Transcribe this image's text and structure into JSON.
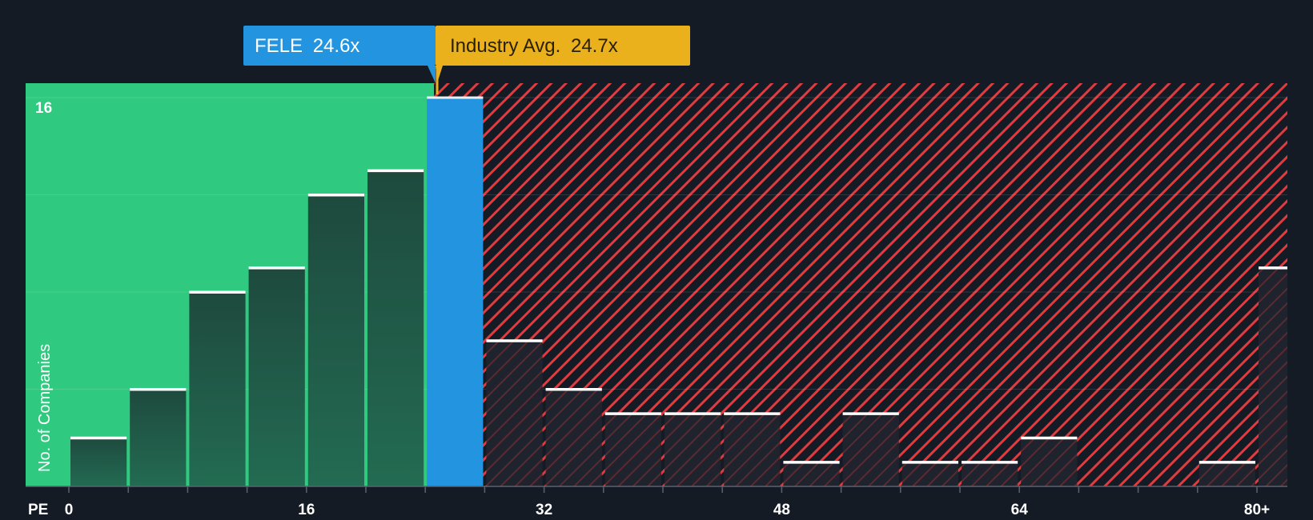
{
  "callouts": {
    "company": {
      "ticker": "FELE",
      "value": "24.6x",
      "pe": 24.6,
      "color": "#2394e0"
    },
    "industry": {
      "label": "Industry Avg.",
      "value": "24.7x",
      "pe": 24.7,
      "color": "#eab11c"
    }
  },
  "colors": {
    "background": "#151b24",
    "undervalued_zone": "#2fc97f",
    "overvalued_zone": "#e03b3f",
    "bar_fill": "#1e4a3e",
    "bar_fill_over": "#1a1e28",
    "bar_cap": "#ffffff",
    "company_bar": "#2394e0",
    "text": "#ffffff",
    "gridline": "#ffffff"
  },
  "chart_data": {
    "type": "bar",
    "title": "",
    "xlabel": "PE",
    "ylabel": "No. of Companies",
    "x_ticks": [
      "0",
      "16",
      "32",
      "48",
      "64",
      "80+"
    ],
    "x_tick_values": [
      0,
      16,
      32,
      48,
      64,
      80
    ],
    "y_ticks": [
      "16"
    ],
    "y_tick_values": [
      16
    ],
    "ylim": [
      0,
      16.6
    ],
    "xlim": [
      -2.9,
      82
    ],
    "bin_width": 4,
    "grid": true,
    "bins": [
      {
        "start": 0,
        "end": 4,
        "count": 2
      },
      {
        "start": 4,
        "end": 8,
        "count": 4
      },
      {
        "start": 8,
        "end": 12,
        "count": 8
      },
      {
        "start": 12,
        "end": 16,
        "count": 9
      },
      {
        "start": 16,
        "end": 20,
        "count": 12
      },
      {
        "start": 20,
        "end": 24,
        "count": 13
      },
      {
        "start": 24,
        "end": 28,
        "count": 16,
        "highlight": true
      },
      {
        "start": 28,
        "end": 32,
        "count": 6
      },
      {
        "start": 32,
        "end": 36,
        "count": 4
      },
      {
        "start": 36,
        "end": 40,
        "count": 3
      },
      {
        "start": 40,
        "end": 44,
        "count": 3
      },
      {
        "start": 44,
        "end": 48,
        "count": 3
      },
      {
        "start": 48,
        "end": 52,
        "count": 1
      },
      {
        "start": 52,
        "end": 56,
        "count": 3
      },
      {
        "start": 56,
        "end": 60,
        "count": 1
      },
      {
        "start": 60,
        "end": 64,
        "count": 1
      },
      {
        "start": 64,
        "end": 68,
        "count": 2
      },
      {
        "start": 68,
        "end": 72,
        "count": 0
      },
      {
        "start": 72,
        "end": 76,
        "count": 0
      },
      {
        "start": 76,
        "end": 80,
        "count": 1
      },
      {
        "start": 80,
        "end": 84,
        "count": 9
      }
    ]
  }
}
